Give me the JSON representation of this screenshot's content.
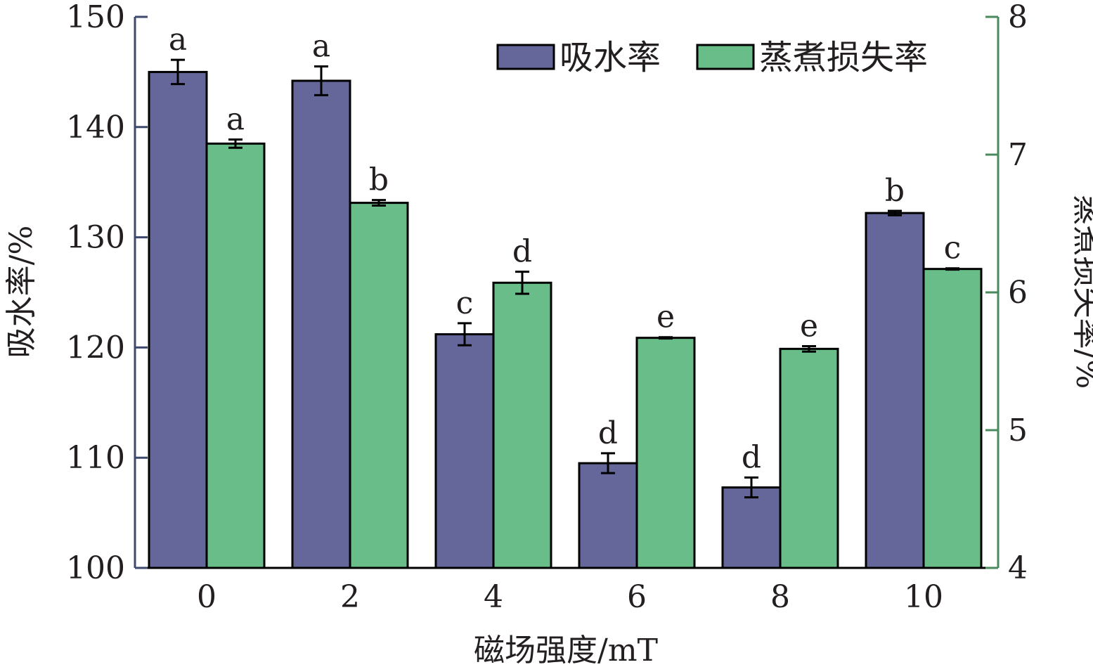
{
  "chart_data": {
    "type": "bar",
    "xlabel": "磁场强度/mT",
    "ylabel_left": "吸水率/%",
    "ylabel_right": "蒸煮损失率/%",
    "categories": [
      "0",
      "2",
      "4",
      "6",
      "8",
      "10"
    ],
    "ylim_left": [
      100,
      150
    ],
    "yticks_left": [
      100,
      110,
      120,
      130,
      140,
      150
    ],
    "ylim_right": [
      4,
      8
    ],
    "yticks_right": [
      4,
      5,
      6,
      7,
      8
    ],
    "grid": false,
    "legend_position": "top-right",
    "series": [
      {
        "name": "吸水率",
        "axis": "left",
        "color": "#65679a",
        "values": [
          145.0,
          144.2,
          121.2,
          109.5,
          107.3,
          132.2
        ],
        "errors": [
          1.1,
          1.3,
          1.0,
          0.9,
          0.9,
          0.2
        ],
        "labels": [
          "a",
          "a",
          "c",
          "d",
          "d",
          "b"
        ]
      },
      {
        "name": "蒸煮损失率",
        "axis": "right",
        "color": "#68bd89",
        "values": [
          7.08,
          6.65,
          6.07,
          5.67,
          5.59,
          6.17
        ],
        "errors": [
          0.03,
          0.02,
          0.08,
          0.005,
          0.02,
          0.005
        ],
        "labels": [
          "a",
          "b",
          "d",
          "e",
          "e",
          "c"
        ]
      }
    ]
  },
  "colors": {
    "left_axis": "#3d4a6b",
    "right_axis": "#4a8a5e",
    "text": "#231f20"
  }
}
